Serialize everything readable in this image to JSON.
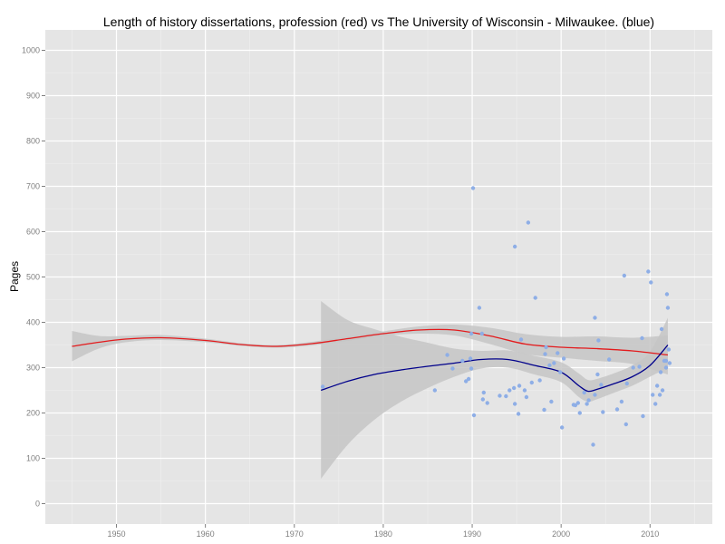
{
  "chart_data": {
    "type": "scatter",
    "title": "Length of history dissertations, profession (red) vs The University of Wisconsin - Milwaukee. (blue)",
    "xlabel": "",
    "ylabel": "Pages",
    "xlim": [
      1942,
      2017
    ],
    "ylim": [
      -45,
      1045
    ],
    "x_ticks": [
      1950,
      1960,
      1970,
      1980,
      1990,
      2000,
      2010
    ],
    "y_ticks": [
      0,
      100,
      200,
      300,
      400,
      500,
      600,
      700,
      800,
      900,
      1000
    ],
    "grid": true,
    "colors": {
      "panel": "#e5e5e5",
      "grid_major": "#ffffff",
      "grid_minor": "#f0f0f0",
      "band": "#c6c6c6",
      "profession_line": "#e31a1c",
      "uwm_line": "#00008b",
      "uwm_points": "#8eaee6"
    },
    "series": [
      {
        "type": "line",
        "x": [
          1945,
          1948,
          1951,
          1955,
          1960,
          1964,
          1968,
          1972,
          1976,
          1980,
          1984,
          1988,
          1992,
          1996,
          2000,
          2004,
          2008,
          2012
        ],
        "y": [
          347,
          356,
          363,
          366,
          360,
          351,
          347,
          353,
          364,
          375,
          383,
          383,
          370,
          352,
          345,
          342,
          337,
          328
        ]
      },
      {
        "type": "band",
        "x": [
          1945,
          1948,
          1951,
          1955,
          1960,
          1964,
          1968,
          1972,
          1976,
          1980,
          1984,
          1988,
          1992,
          1996,
          2000,
          2004,
          2008,
          2012
        ],
        "lower": [
          314,
          342,
          356,
          361,
          356,
          348,
          344,
          349,
          359,
          370,
          375,
          371,
          352,
          330,
          322,
          315,
          308,
          285
        ],
        "upper": [
          381,
          370,
          370,
          372,
          364,
          354,
          350,
          357,
          369,
          380,
          391,
          395,
          388,
          374,
          368,
          369,
          366,
          371
        ]
      },
      {
        "type": "line",
        "x": [
          1973,
          1976,
          1979,
          1982,
          1985,
          1988,
          1991,
          1994,
          1997,
          2000,
          2002,
          2003,
          2004,
          2006,
          2008,
          2010,
          2012
        ],
        "y": [
          250,
          270,
          285,
          295,
          303,
          310,
          318,
          318,
          305,
          290,
          260,
          248,
          252,
          265,
          280,
          305,
          350
        ]
      },
      {
        "type": "band",
        "x": [
          1973,
          1976,
          1979,
          1982,
          1985,
          1988,
          1991,
          1994,
          1997,
          2000,
          2002,
          2003,
          2004,
          2006,
          2008,
          2010,
          2012
        ],
        "lower": [
          55,
          130,
          185,
          225,
          255,
          280,
          298,
          300,
          285,
          268,
          235,
          225,
          230,
          245,
          260,
          280,
          300
        ],
        "upper": [
          447,
          405,
          385,
          368,
          355,
          342,
          337,
          338,
          326,
          312,
          287,
          273,
          275,
          288,
          305,
          335,
          410
        ]
      },
      {
        "type": "scatter",
        "points": [
          [
            1973.2,
            258
          ],
          [
            1985.8,
            250
          ],
          [
            1987.2,
            328
          ],
          [
            1987.8,
            298
          ],
          [
            1988.9,
            315
          ],
          [
            1989.3,
            270
          ],
          [
            1989.6,
            275
          ],
          [
            1989.8,
            320
          ],
          [
            1989.9,
            298
          ],
          [
            1989.9,
            375
          ],
          [
            1990.1,
            696
          ],
          [
            1990.2,
            195
          ],
          [
            1990.8,
            432
          ],
          [
            1991.1,
            375
          ],
          [
            1991.2,
            230
          ],
          [
            1991.3,
            245
          ],
          [
            1991.7,
            222
          ],
          [
            1993.1,
            238
          ],
          [
            1993.8,
            237
          ],
          [
            1994.2,
            250
          ],
          [
            1994.7,
            255
          ],
          [
            1994.8,
            567
          ],
          [
            1994.8,
            220
          ],
          [
            1995.2,
            198
          ],
          [
            1995.3,
            260
          ],
          [
            1995.5,
            362
          ],
          [
            1995.9,
            250
          ],
          [
            1996.1,
            235
          ],
          [
            1996.3,
            620
          ],
          [
            1996.7,
            267
          ],
          [
            1997.1,
            454
          ],
          [
            1997.6,
            272
          ],
          [
            1998.1,
            207
          ],
          [
            1998.2,
            330
          ],
          [
            1998.3,
            345
          ],
          [
            1998.7,
            305
          ],
          [
            1998.9,
            225
          ],
          [
            1999.2,
            310
          ],
          [
            1999.6,
            332
          ],
          [
            1999.9,
            290
          ],
          [
            2000.1,
            168
          ],
          [
            2000.3,
            320
          ],
          [
            2001.4,
            218
          ],
          [
            2001.6,
            217
          ],
          [
            2001.9,
            222
          ],
          [
            2002.1,
            200
          ],
          [
            2002.6,
            245
          ],
          [
            2002.9,
            220
          ],
          [
            2003.1,
            228
          ],
          [
            2003.6,
            130
          ],
          [
            2003.8,
            240
          ],
          [
            2003.8,
            410
          ],
          [
            2004.1,
            285
          ],
          [
            2004.2,
            360
          ],
          [
            2004.5,
            262
          ],
          [
            2004.7,
            202
          ],
          [
            2005.4,
            318
          ],
          [
            2006.3,
            208
          ],
          [
            2006.8,
            225
          ],
          [
            2007.1,
            503
          ],
          [
            2007.3,
            175
          ],
          [
            2007.4,
            265
          ],
          [
            2008.1,
            300
          ],
          [
            2008.8,
            302
          ],
          [
            2009.1,
            365
          ],
          [
            2009.2,
            193
          ],
          [
            2009.8,
            512
          ],
          [
            2010.1,
            488
          ],
          [
            2010.3,
            240
          ],
          [
            2010.6,
            220
          ],
          [
            2010.8,
            260
          ],
          [
            2011.1,
            240
          ],
          [
            2011.2,
            290
          ],
          [
            2011.3,
            385
          ],
          [
            2011.4,
            250
          ],
          [
            2011.6,
            315
          ],
          [
            2011.8,
            300
          ],
          [
            2011.8,
            315
          ],
          [
            2011.9,
            462
          ],
          [
            2012.0,
            432
          ],
          [
            2012.1,
            340
          ],
          [
            2012.2,
            310
          ]
        ]
      }
    ]
  }
}
